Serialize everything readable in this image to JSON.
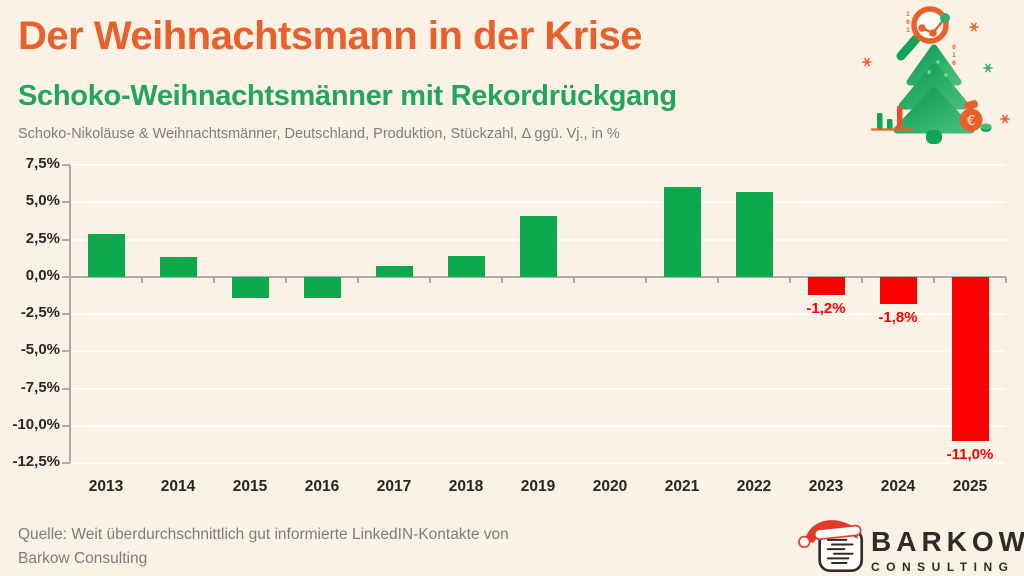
{
  "header": {
    "title": "Der Weihnachtsmann in der Krise",
    "subtitle": "Schoko-Weihnachtsmänner mit Rekordrückgang",
    "caption": "Schoko-Nikoläuse & Weihnachtsmänner, Deutschland, Produktion, Stückzahl, Δ ggü. Vj., in %"
  },
  "chart_data": {
    "type": "bar",
    "title": "Der Weihnachtsmann in der Krise",
    "subtitle": "Schoko-Weihnachtsmänner mit Rekordrückgang",
    "note": "Schoko-Nikoläuse & Weihnachtsmänner, Deutschland, Produktion, Stückzahl, Δ ggü. Vj., in %",
    "categories": [
      "2013",
      "2014",
      "2015",
      "2016",
      "2017",
      "2018",
      "2019",
      "2020",
      "2021",
      "2022",
      "2023",
      "2024",
      "2025"
    ],
    "values": [
      2.9,
      1.3,
      -1.4,
      -1.4,
      0.7,
      1.4,
      4.1,
      0.0,
      6.0,
      5.7,
      -1.2,
      -1.8,
      -11.0
    ],
    "bar_colors": [
      "#0CA84E",
      "#0CA84E",
      "#0CA84E",
      "#0CA84E",
      "#0CA84E",
      "#0CA84E",
      "#0CA84E",
      "#0CA84E",
      "#0CA84E",
      "#0CA84E",
      "#FD0000",
      "#FD0000",
      "#FD0000"
    ],
    "data_labels": [
      "",
      "",
      "",
      "",
      "",
      "",
      "",
      "",
      "",
      "",
      "-1,2%",
      "-1,8%",
      "-11,0%"
    ],
    "y_axis": {
      "tick_values": [
        7.5,
        5.0,
        2.5,
        0.0,
        -2.5,
        -5.0,
        -7.5,
        -10.0,
        -12.5
      ],
      "tick_labels": [
        "7,5%",
        "5,0%",
        "2,5%",
        "0,0%",
        "-2,5%",
        "-5,0%",
        "-7,5%",
        "-10,0%",
        "-12,5%"
      ]
    },
    "ylim": [
      -12.5,
      7.5
    ],
    "xlabel": "",
    "ylabel": "",
    "grid": "horizontal faint white lines",
    "legend": "none"
  },
  "footer": {
    "source_line1": "Quelle: Weit überdurchschnittlich gut informierte LinkedIN-Kontakte von",
    "source_line2": "Barkow Consulting",
    "logo_name": "BARKOW",
    "logo_sub": "CONSULTING"
  },
  "icons": {
    "magnifier-chart-icon": "orange magnifying glass with line-chart dots",
    "christmas-tree-icon": "green three-tier fir tree",
    "mini-bar-chart-icon": "two green bars + one red bar on orange baseline",
    "money-bag-euro-icon": "orange sack with € and green coin",
    "snowflake-icon": "✳",
    "binary-digits-icon": "101 / 010",
    "santa-hat-icon": "red santa hat with white trim",
    "document-lines-icon": "rounded square with text lines"
  },
  "colors": {
    "background": "#FBF2E5",
    "title": "#E8612C",
    "subtitle": "#23A55C",
    "caption": "#7E7E7E",
    "bar_positive": "#0CA84E",
    "bar_negative": "#FD0000",
    "axis": "#ABABAB",
    "axis_text": "#262626",
    "data_label_red": "#FB0000",
    "source_text": "#7C7C7C",
    "logo_text": "#2E2B28",
    "santa_red": "#E0392B"
  }
}
